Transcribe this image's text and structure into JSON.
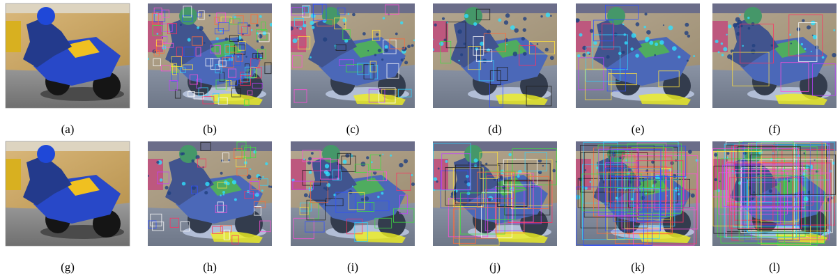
{
  "captions": [
    "(a)",
    "(b)",
    "(c)",
    "(d)",
    "(e)",
    "(f)",
    "(g)",
    "(h)",
    "(i)",
    "(j)",
    "(k)",
    "(l)"
  ]
}
